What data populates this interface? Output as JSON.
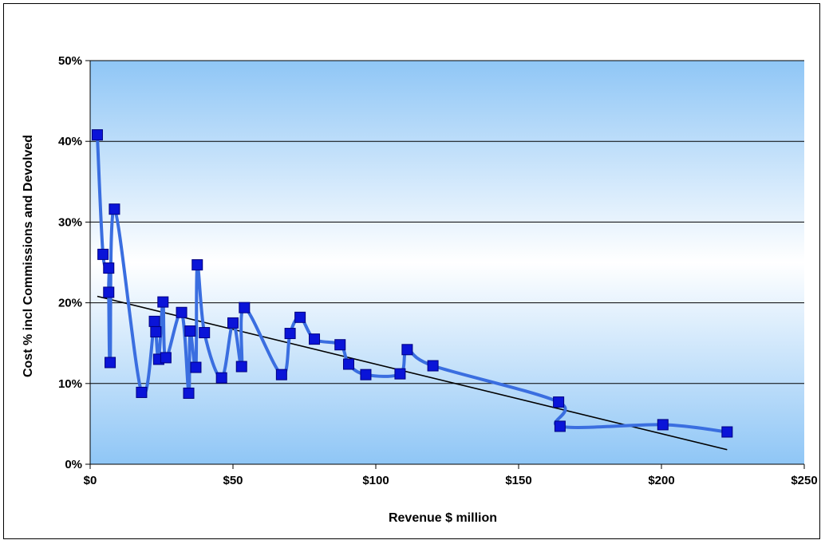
{
  "chart_data": {
    "type": "scatter",
    "xlabel": "Revenue $ million",
    "ylabel": "Cost % incl Commissions and Devolved",
    "xlim": [
      0,
      250
    ],
    "ylim": [
      0,
      50
    ],
    "x_ticks": [
      0,
      50,
      100,
      150,
      200,
      250
    ],
    "x_tick_labels": [
      "$0",
      "$50",
      "$100",
      "$150",
      "$200",
      "$250"
    ],
    "y_ticks": [
      0,
      10,
      20,
      30,
      40,
      50
    ],
    "y_tick_labels": [
      "0%",
      "10%",
      "20%",
      "30%",
      "40%",
      "50%"
    ],
    "grid": "horizontal",
    "legend": "none",
    "colors": {
      "series": "#3a6ee0",
      "marker": "#0a14d8",
      "trendline": "#000000",
      "plot_bg_top": "#8fc6f6",
      "plot_bg_middle": "#ffffff",
      "plot_bg_bottom": "#8fc6f6"
    },
    "series": [
      {
        "style": "smoothed line with square markers",
        "points": [
          [
            2.5,
            40.8
          ],
          [
            4.5,
            26.0
          ],
          [
            6.5,
            24.3
          ],
          [
            6.5,
            21.3
          ],
          [
            7.0,
            12.6
          ],
          [
            8.5,
            31.6
          ],
          [
            18,
            8.9
          ],
          [
            22.5,
            17.7
          ],
          [
            23,
            16.4
          ],
          [
            24,
            13.0
          ],
          [
            25.5,
            20.1
          ],
          [
            26.5,
            13.2
          ],
          [
            32,
            18.8
          ],
          [
            34.5,
            8.8
          ],
          [
            35,
            16.5
          ],
          [
            37,
            12.0
          ],
          [
            37.5,
            24.7
          ],
          [
            40,
            16.3
          ],
          [
            46,
            10.7
          ],
          [
            50,
            17.5
          ],
          [
            53,
            12.1
          ],
          [
            54,
            19.4
          ],
          [
            67,
            11.1
          ],
          [
            70,
            16.2
          ],
          [
            73.5,
            18.2
          ],
          [
            78.5,
            15.5
          ],
          [
            87.5,
            14.8
          ],
          [
            90.5,
            12.4
          ],
          [
            96.5,
            11.1
          ],
          [
            108.5,
            11.2
          ],
          [
            111,
            14.2
          ],
          [
            120,
            12.2
          ],
          [
            164,
            7.7
          ],
          [
            164.5,
            4.7
          ],
          [
            200.5,
            4.9
          ],
          [
            223,
            4.0
          ]
        ]
      }
    ],
    "trendline": {
      "type": "linear",
      "points": [
        [
          2.5,
          20.8
        ],
        [
          223,
          1.8
        ]
      ]
    }
  }
}
